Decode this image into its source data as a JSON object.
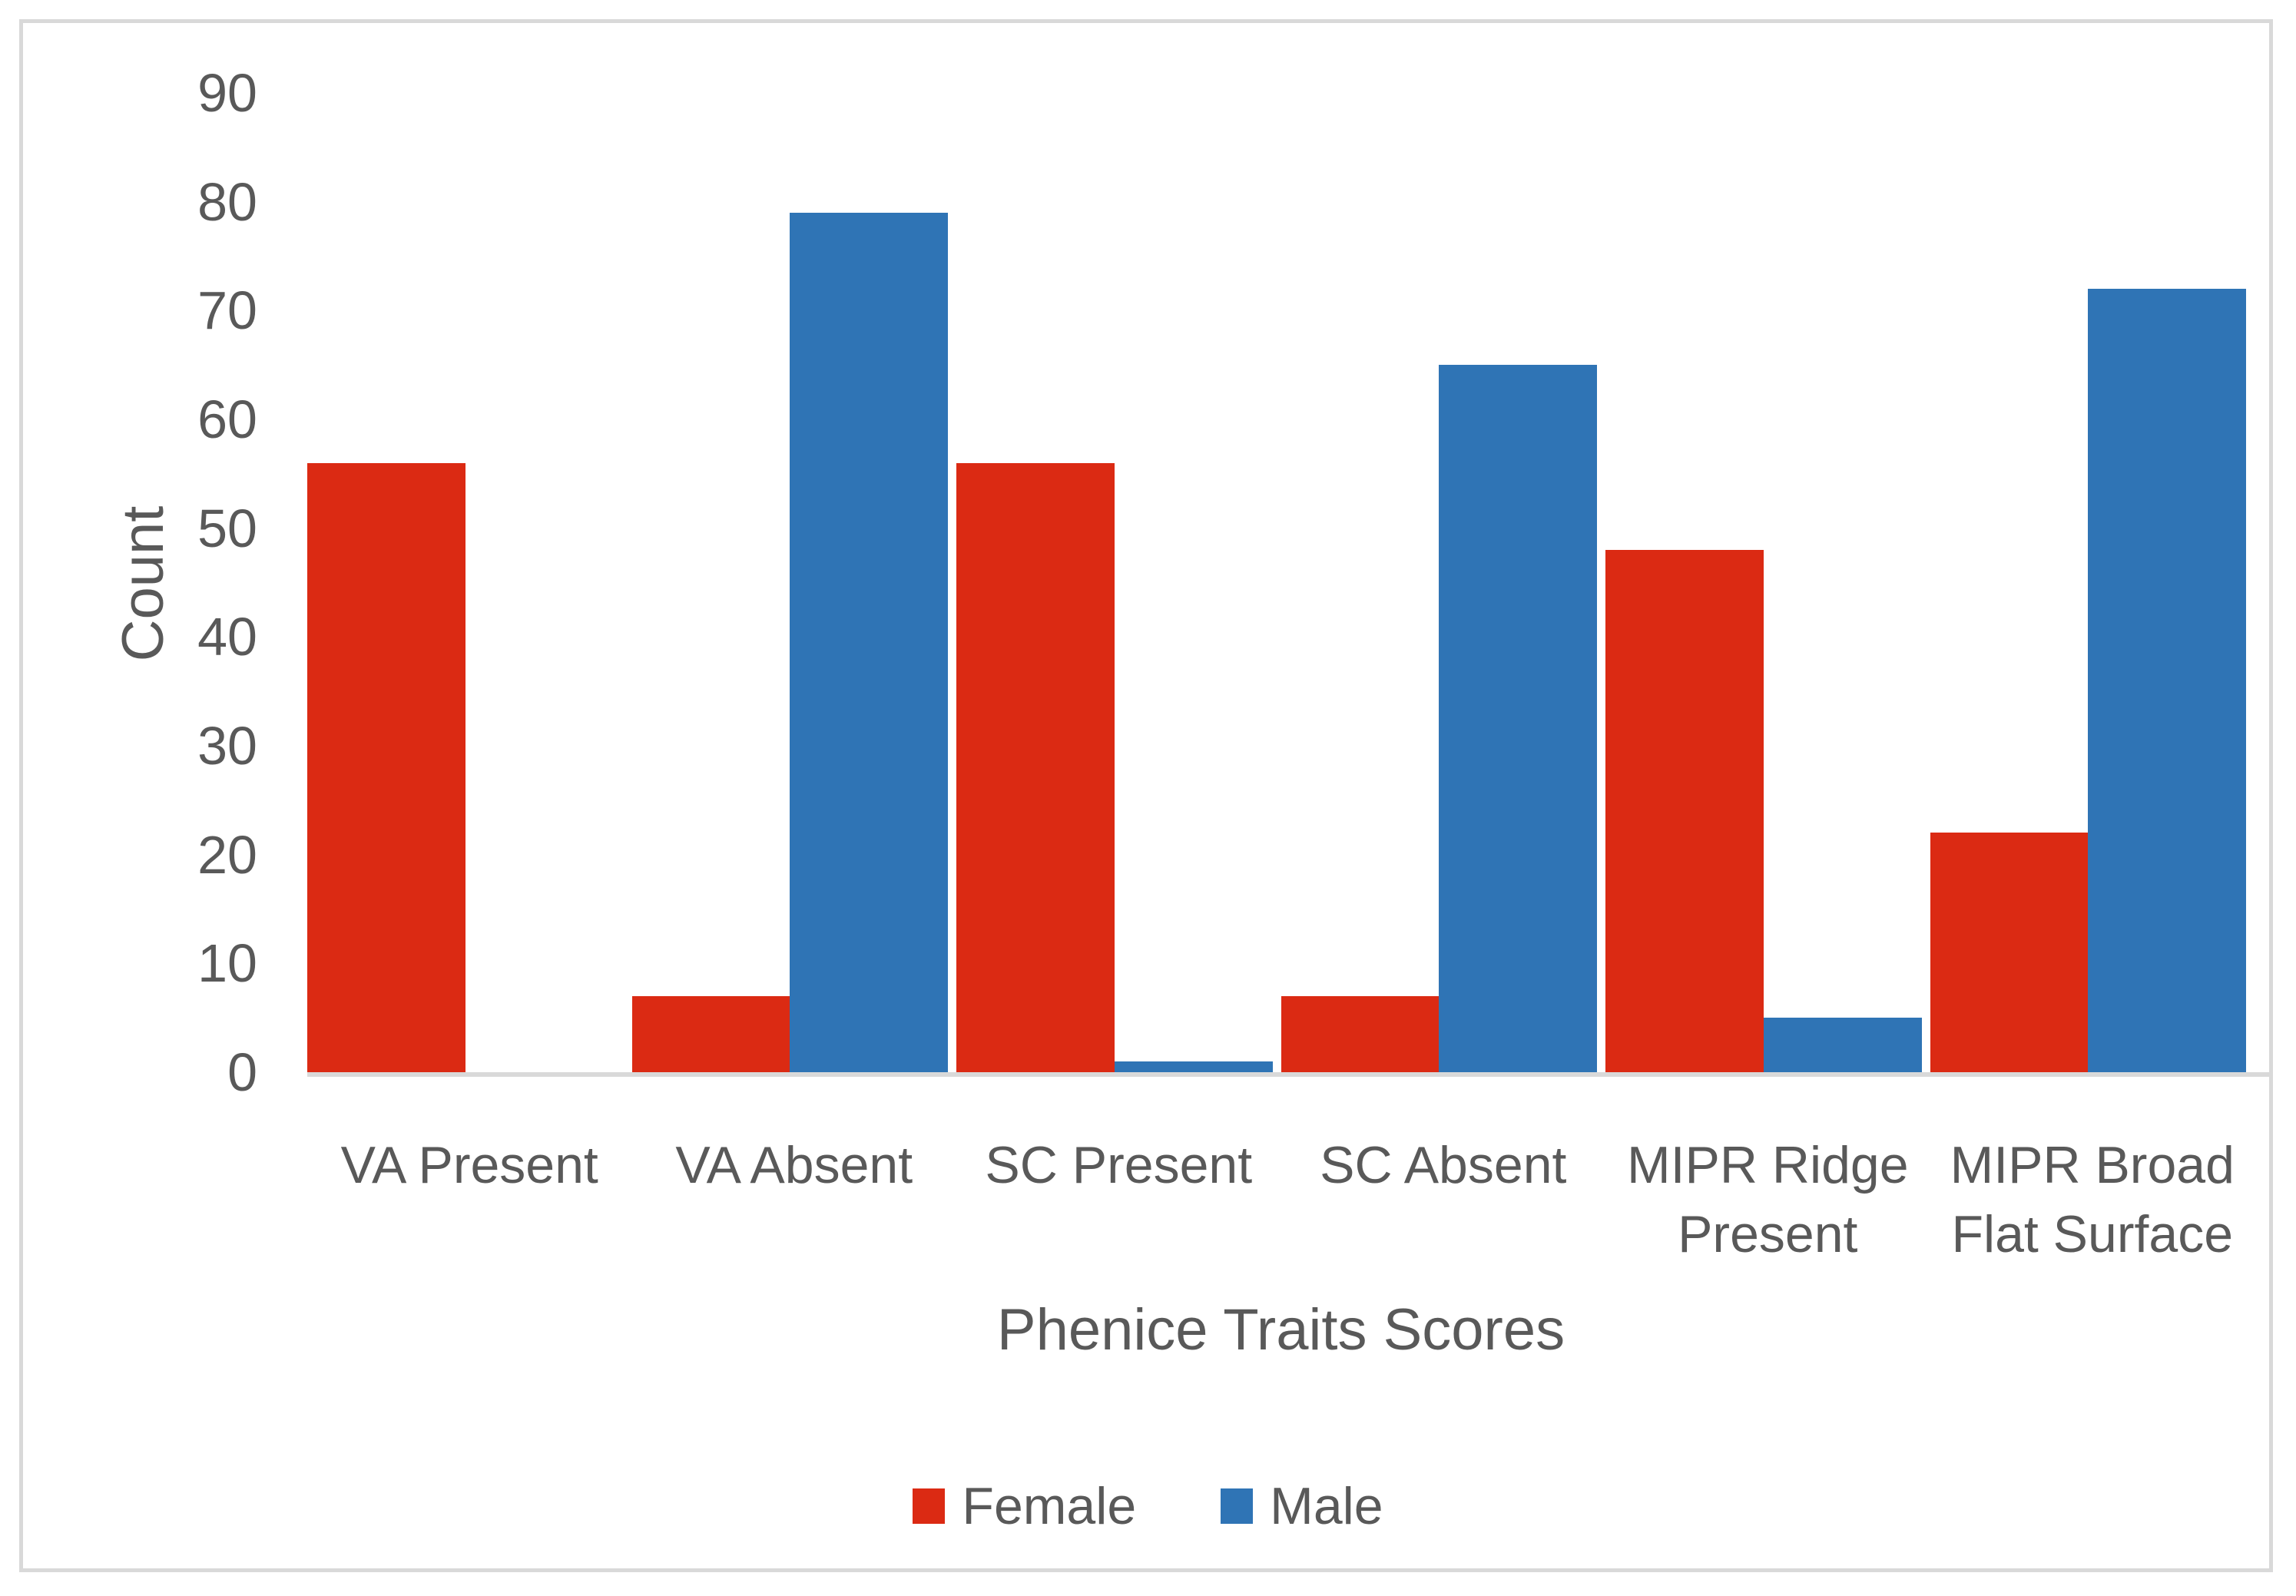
{
  "chart_data": {
    "type": "bar",
    "categories": [
      "VA Present",
      "VA Absent",
      "SC Present",
      "SC Absent",
      "MIPR Ridge Present",
      "MIPR Broad Flat Surface"
    ],
    "series": [
      {
        "name": "Female",
        "color": "#db2a13",
        "values": [
          56,
          7,
          56,
          7,
          48,
          22
        ]
      },
      {
        "name": "Male",
        "color": "#2f74b5",
        "values": [
          0,
          79,
          1,
          65,
          5,
          72
        ]
      }
    ],
    "title": "",
    "xlabel": "Phenice Traits Scores",
    "ylabel": "Count",
    "ylim": [
      0,
      90
    ],
    "ytick_interval": 10,
    "y_ticks": [
      0,
      10,
      20,
      30,
      40,
      50,
      60,
      70,
      80,
      90
    ],
    "grid": false,
    "legend_position": "bottom"
  },
  "colors": {
    "female": "#db2a13",
    "male": "#2f74b5",
    "axis_line": "#d9d9d9",
    "frame_border": "#d9d9d9",
    "text": "#595959",
    "background": "#ffffff"
  }
}
